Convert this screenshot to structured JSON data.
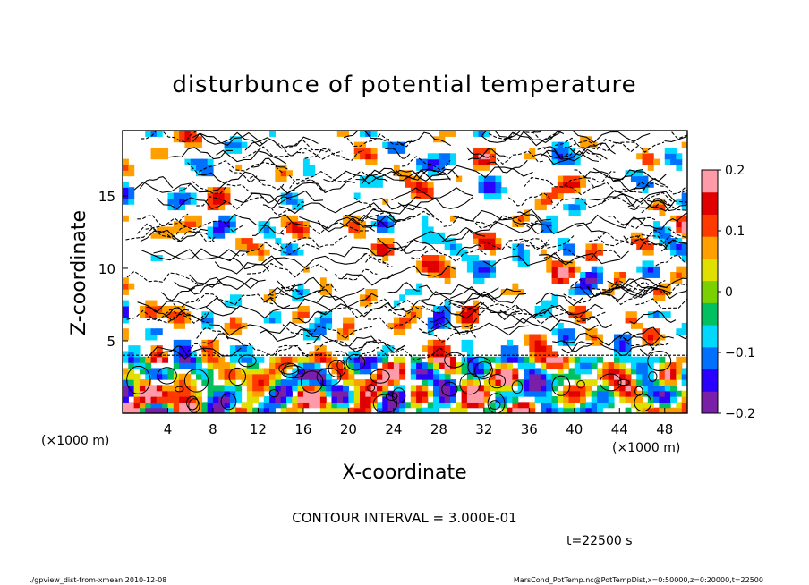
{
  "chart_data": {
    "type": "heatmap",
    "title": "disturbunce of potential temperature",
    "xlabel": "X-coordinate",
    "ylabel": "Z-coordinate",
    "x_unit": "(×1000 m)",
    "y_unit": "(×1000 m)",
    "xlim": [
      0,
      50
    ],
    "ylim": [
      0,
      19.5
    ],
    "x_ticks": [
      4,
      8,
      12,
      16,
      20,
      24,
      28,
      32,
      36,
      40,
      44,
      48
    ],
    "y_ticks": [
      5,
      10,
      15
    ],
    "colorbar": {
      "min": -0.2,
      "max": 0.2,
      "ticks": [
        0.2,
        0.1,
        0,
        -0.1,
        -0.2
      ],
      "tick_labels": [
        "0.2",
        "0.1",
        "0",
        "−0.1",
        "−0.2"
      ],
      "colors": [
        "#7a1fa8",
        "#2a00ff",
        "#0070ff",
        "#00d8ff",
        "#00c060",
        "#7ad000",
        "#e0e000",
        "#ffa000",
        "#ff3a00",
        "#e00000",
        "#ff9aa8"
      ]
    },
    "contour_interval_text": "CONTOUR INTERVAL = 3.000E-01",
    "time_text": "t=22500 s",
    "regions": [
      {
        "z_range": [
          0,
          4
        ],
        "description_level": "strong color disturbances in lower layer"
      },
      {
        "z_range": [
          4,
          19.5
        ],
        "description_level": "mostly white with dense black contours"
      }
    ]
  },
  "footer": {
    "left": "./gpview_dist-from-xmean  2010-12-08",
    "right": "MarsCond_PotTemp.nc@PotTempDist,x=0:50000,z=0:20000,t=22500"
  },
  "colors": {
    "frame": "#000000",
    "background": "#ffffff"
  }
}
